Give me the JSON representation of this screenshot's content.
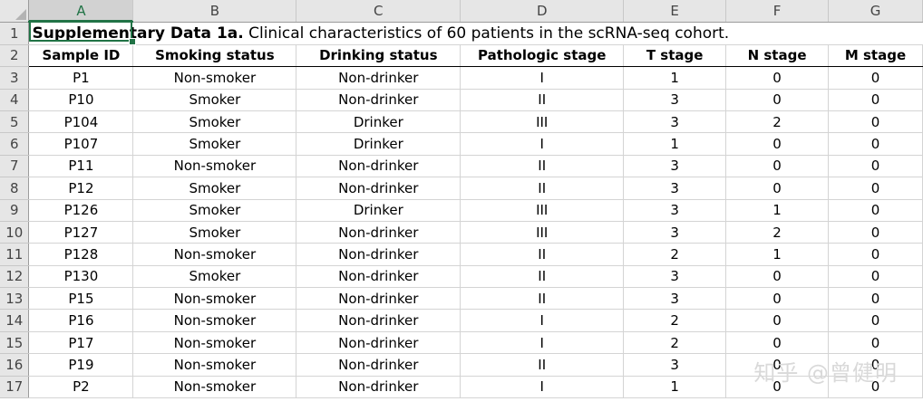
{
  "columns": [
    "A",
    "B",
    "C",
    "D",
    "E",
    "F",
    "G"
  ],
  "title": {
    "bold": "Supplementary Data 1a.",
    "rest": " Clinical characteristics of 60 patients in the scRNA-seq cohort."
  },
  "headers": [
    "Sample ID",
    "Smoking status",
    "Drinking status",
    "Pathologic stage",
    "T stage",
    "N stage",
    "M stage"
  ],
  "rows": [
    [
      "P1",
      "Non-smoker",
      "Non-drinker",
      "I",
      "1",
      "0",
      "0"
    ],
    [
      "P10",
      "Smoker",
      "Non-drinker",
      "II",
      "3",
      "0",
      "0"
    ],
    [
      "P104",
      "Smoker",
      "Drinker",
      "III",
      "3",
      "2",
      "0"
    ],
    [
      "P107",
      "Smoker",
      "Drinker",
      "I",
      "1",
      "0",
      "0"
    ],
    [
      "P11",
      "Non-smoker",
      "Non-drinker",
      "II",
      "3",
      "0",
      "0"
    ],
    [
      "P12",
      "Smoker",
      "Non-drinker",
      "II",
      "3",
      "0",
      "0"
    ],
    [
      "P126",
      "Smoker",
      "Drinker",
      "III",
      "3",
      "1",
      "0"
    ],
    [
      "P127",
      "Smoker",
      "Non-drinker",
      "III",
      "3",
      "2",
      "0"
    ],
    [
      "P128",
      "Non-smoker",
      "Non-drinker",
      "II",
      "2",
      "1",
      "0"
    ],
    [
      "P130",
      "Smoker",
      "Non-drinker",
      "II",
      "3",
      "0",
      "0"
    ],
    [
      "P15",
      "Non-smoker",
      "Non-drinker",
      "II",
      "3",
      "0",
      "0"
    ],
    [
      "P16",
      "Non-smoker",
      "Non-drinker",
      "I",
      "2",
      "0",
      "0"
    ],
    [
      "P17",
      "Non-smoker",
      "Non-drinker",
      "I",
      "2",
      "0",
      "0"
    ],
    [
      "P19",
      "Non-smoker",
      "Non-drinker",
      "II",
      "3",
      "0",
      "0"
    ],
    [
      "P2",
      "Non-smoker",
      "Non-drinker",
      "I",
      "1",
      "0",
      "0"
    ]
  ],
  "watermark": "知乎 @曾健明",
  "active_cell": "A1",
  "accent_color": "#217346"
}
